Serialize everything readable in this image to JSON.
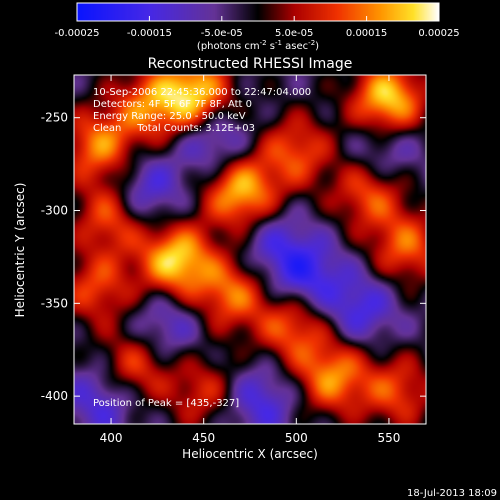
{
  "chart_data": {
    "type": "heatmap",
    "title": "Reconstructed RHESSI Image",
    "xlabel": "Heliocentric X (arcsec)",
    "ylabel": "Heliocentric Y (arcsec)",
    "xlim": [
      380,
      570
    ],
    "ylim": [
      -415,
      -227
    ],
    "xticks": [
      400,
      450,
      500,
      550
    ],
    "yticks": [
      -250,
      -300,
      -350,
      -400
    ],
    "colorbar": {
      "range": [
        -0.00025,
        0.00025
      ],
      "tick_values": [
        -0.00025,
        -0.00015,
        -5e-05,
        5e-05,
        0.00015,
        0.00025
      ],
      "tick_labels": [
        "-0.00025",
        "-0.00015",
        "-5.0e-05",
        "5.0e-05",
        "0.00015",
        "0.00025"
      ],
      "label_main": "(photons cm",
      "label_exp1": "-2",
      "label_mid": " s",
      "label_exp2": "-1",
      "label_end": " asec",
      "label_exp3": "-2",
      "label_close": ")"
    },
    "annotations": {
      "time": "10-Sep-2006 22:45:36.000 to 22:47:04.000",
      "detectors": "Detectors: 4F 5F 6F 7F 8F, Att 0",
      "energy": "Energy Range: 25.0 - 50.0 keV",
      "method": "Clean     Total Counts: 3.12E+03",
      "peak": "Position of Peak = [435,-327]"
    },
    "blobs": [
      {
        "x": 435,
        "y": -327,
        "v": 0.00025
      },
      {
        "x": 445,
        "y": -237,
        "v": 0.00024
      },
      {
        "x": 550,
        "y": -240,
        "v": 0.00025
      },
      {
        "x": 470,
        "y": -290,
        "v": 0.00023
      },
      {
        "x": 393,
        "y": -265,
        "v": 0.00018
      },
      {
        "x": 420,
        "y": -243,
        "v": 0.00016
      },
      {
        "x": 400,
        "y": -303,
        "v": 0.00016
      },
      {
        "x": 500,
        "y": -268,
        "v": 0.00015
      },
      {
        "x": 540,
        "y": -290,
        "v": 0.00016
      },
      {
        "x": 560,
        "y": -320,
        "v": 0.00016
      },
      {
        "x": 465,
        "y": -345,
        "v": 0.00017
      },
      {
        "x": 498,
        "y": -363,
        "v": 0.00016
      },
      {
        "x": 520,
        "y": -390,
        "v": 0.00019
      },
      {
        "x": 412,
        "y": -385,
        "v": 0.00015
      },
      {
        "x": 392,
        "y": -342,
        "v": 0.00014
      },
      {
        "x": 555,
        "y": -398,
        "v": 0.00014
      },
      {
        "x": 450,
        "y": -398,
        "v": 0.00012
      },
      {
        "x": 418,
        "y": -290,
        "v": -0.00013
      },
      {
        "x": 455,
        "y": -262,
        "v": -0.00012
      },
      {
        "x": 505,
        "y": -335,
        "v": -0.00014
      },
      {
        "x": 535,
        "y": -353,
        "v": -0.00012
      },
      {
        "x": 480,
        "y": -403,
        "v": -0.00012
      },
      {
        "x": 395,
        "y": -402,
        "v": -0.00012
      },
      {
        "x": 430,
        "y": -362,
        "v": -0.0001
      },
      {
        "x": 548,
        "y": -268,
        "v": -0.0001
      },
      {
        "x": 488,
        "y": -318,
        "v": -9e-05
      }
    ]
  },
  "footer": {
    "timestamp": "18-Jul-2013 18:09"
  }
}
